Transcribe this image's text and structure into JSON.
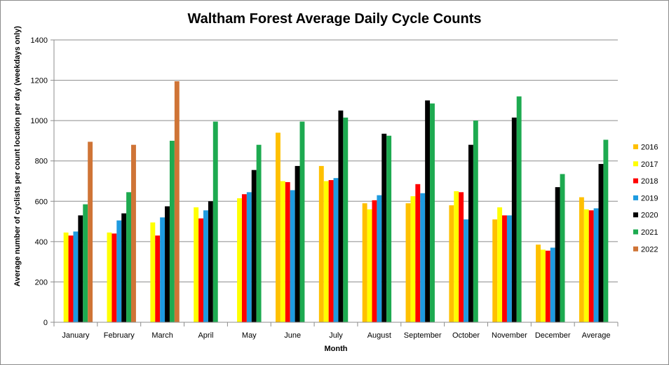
{
  "chart_data": {
    "type": "bar",
    "title": "Waltham Forest Average Daily Cycle Counts",
    "xlabel": "Month",
    "ylabel": "Average number of cyclists per count location per day (weekdays only)",
    "ylim": [
      0,
      1400
    ],
    "yticks": [
      0,
      200,
      400,
      600,
      800,
      1000,
      1200,
      1400
    ],
    "grid": true,
    "legend_position": "right",
    "categories": [
      "January",
      "February",
      "March",
      "April",
      "May",
      "June",
      "July",
      "August",
      "September",
      "October",
      "November",
      "December",
      "Average"
    ],
    "series": [
      {
        "name": "2016",
        "color": "#FFC000",
        "values": [
          null,
          null,
          null,
          null,
          null,
          940,
          775,
          590,
          590,
          580,
          510,
          385,
          620
        ]
      },
      {
        "name": "2017",
        "color": "#FFFF00",
        "values": [
          445,
          445,
          495,
          570,
          615,
          700,
          700,
          560,
          625,
          650,
          570,
          360,
          560
        ]
      },
      {
        "name": "2018",
        "color": "#FF0000",
        "values": [
          430,
          440,
          430,
          515,
          635,
          695,
          705,
          605,
          685,
          645,
          530,
          355,
          555
        ]
      },
      {
        "name": "2019",
        "color": "#1E9BE0",
        "values": [
          450,
          505,
          520,
          555,
          645,
          655,
          715,
          630,
          640,
          510,
          530,
          370,
          565
        ]
      },
      {
        "name": "2020",
        "color": "#000000",
        "values": [
          530,
          540,
          575,
          600,
          755,
          775,
          1050,
          935,
          1100,
          880,
          1015,
          670,
          785
        ]
      },
      {
        "name": "2021",
        "color": "#1DAA50",
        "values": [
          585,
          645,
          900,
          995,
          880,
          995,
          1015,
          925,
          1085,
          1000,
          1120,
          735,
          905
        ]
      },
      {
        "name": "2022",
        "color": "#CF7436",
        "values": [
          895,
          880,
          1195,
          null,
          null,
          null,
          null,
          null,
          null,
          null,
          null,
          null,
          null
        ]
      }
    ]
  }
}
